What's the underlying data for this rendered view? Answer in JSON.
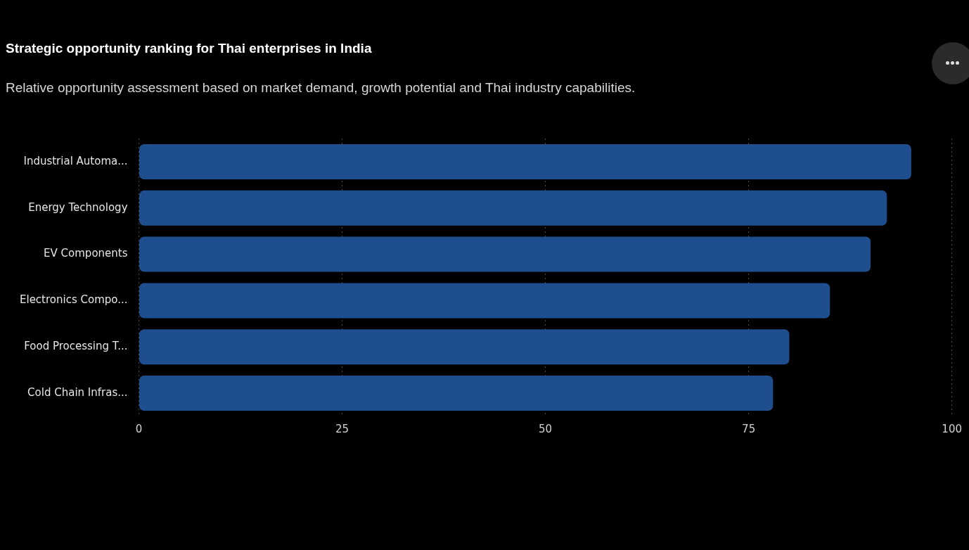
{
  "chart_data": {
    "type": "bar",
    "orientation": "horizontal",
    "title": "Strategic opportunity ranking for Thai enterprises in India",
    "subtitle": "Relative opportunity assessment based on market demand, growth potential and Thai industry capabilities.",
    "categories": [
      "Industrial Automa...",
      "Energy Technology",
      "EV Components",
      "Electronics Compo...",
      "Food Processing T...",
      "Cold Chain Infras..."
    ],
    "values": [
      95,
      92,
      90,
      85,
      80,
      78
    ],
    "color": "#1f4e8e",
    "xlim": [
      0,
      100
    ],
    "xticks": [
      0,
      25,
      50,
      75,
      100
    ],
    "grid": "x",
    "legend": false
  }
}
